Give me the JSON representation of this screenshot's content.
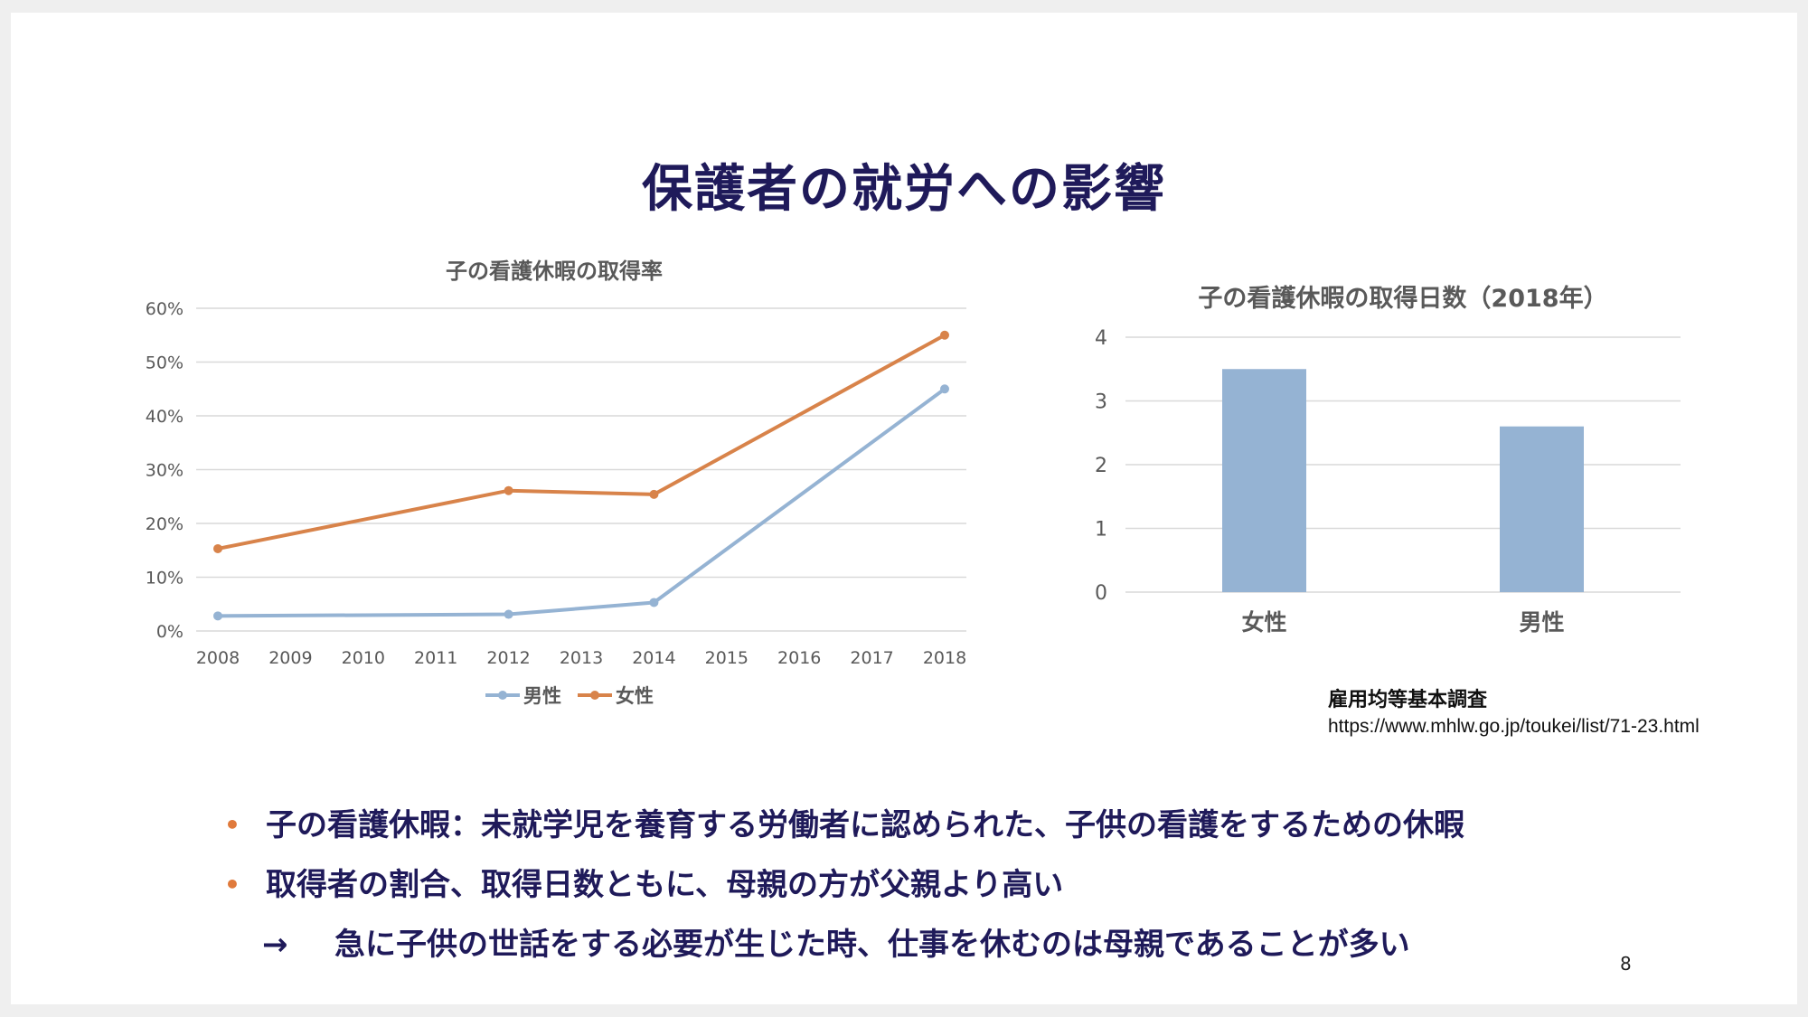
{
  "slide": {
    "title": "保護者の就労への影響",
    "page_number": "8",
    "source_name": "雇用均等基本調査",
    "source_url": "https://www.mhlw.go.jp/toukei/list/71-23.html",
    "bullets": [
      "子の看護休暇：未就学児を養育する労働者に認められた、子供の看護をするための休暇",
      "取得者の割合、取得日数ともに、母親の方が父親より高い"
    ],
    "arrow_symbol": "→",
    "arrow_text": "急に子供の世話をする必要が生じた時、仕事を休むのは母親であることが多い"
  },
  "chart_data": [
    {
      "type": "line",
      "title": "子の看護休暇の取得率",
      "categories": [
        "2008",
        "2009",
        "2010",
        "2011",
        "2012",
        "2013",
        "2014",
        "2015",
        "2016",
        "2017",
        "2018"
      ],
      "y_tick_labels": [
        "0%",
        "10%",
        "20%",
        "30%",
        "40%",
        "50%",
        "60%"
      ],
      "ylim": [
        0,
        60
      ],
      "grid": true,
      "legend": "bottom",
      "series": [
        {
          "name": "男性",
          "color": "#95b3d3",
          "points": [
            [
              0,
              2.8
            ],
            [
              4,
              3.1
            ],
            [
              6,
              5.3
            ],
            [
              10,
              45
            ]
          ]
        },
        {
          "name": "女性",
          "color": "#d8834a",
          "points": [
            [
              0,
              15.3
            ],
            [
              4,
              26.1
            ],
            [
              6,
              25.4
            ],
            [
              10,
              55
            ]
          ]
        }
      ]
    },
    {
      "type": "bar",
      "title": "子の看護休暇の取得日数（2018年）",
      "categories": [
        "女性",
        "男性"
      ],
      "values": [
        3.5,
        2.6
      ],
      "y_tick_labels": [
        "0",
        "1",
        "2",
        "3",
        "4"
      ],
      "ylim": [
        0,
        4
      ],
      "grid": true,
      "color": "#95b3d3"
    }
  ]
}
